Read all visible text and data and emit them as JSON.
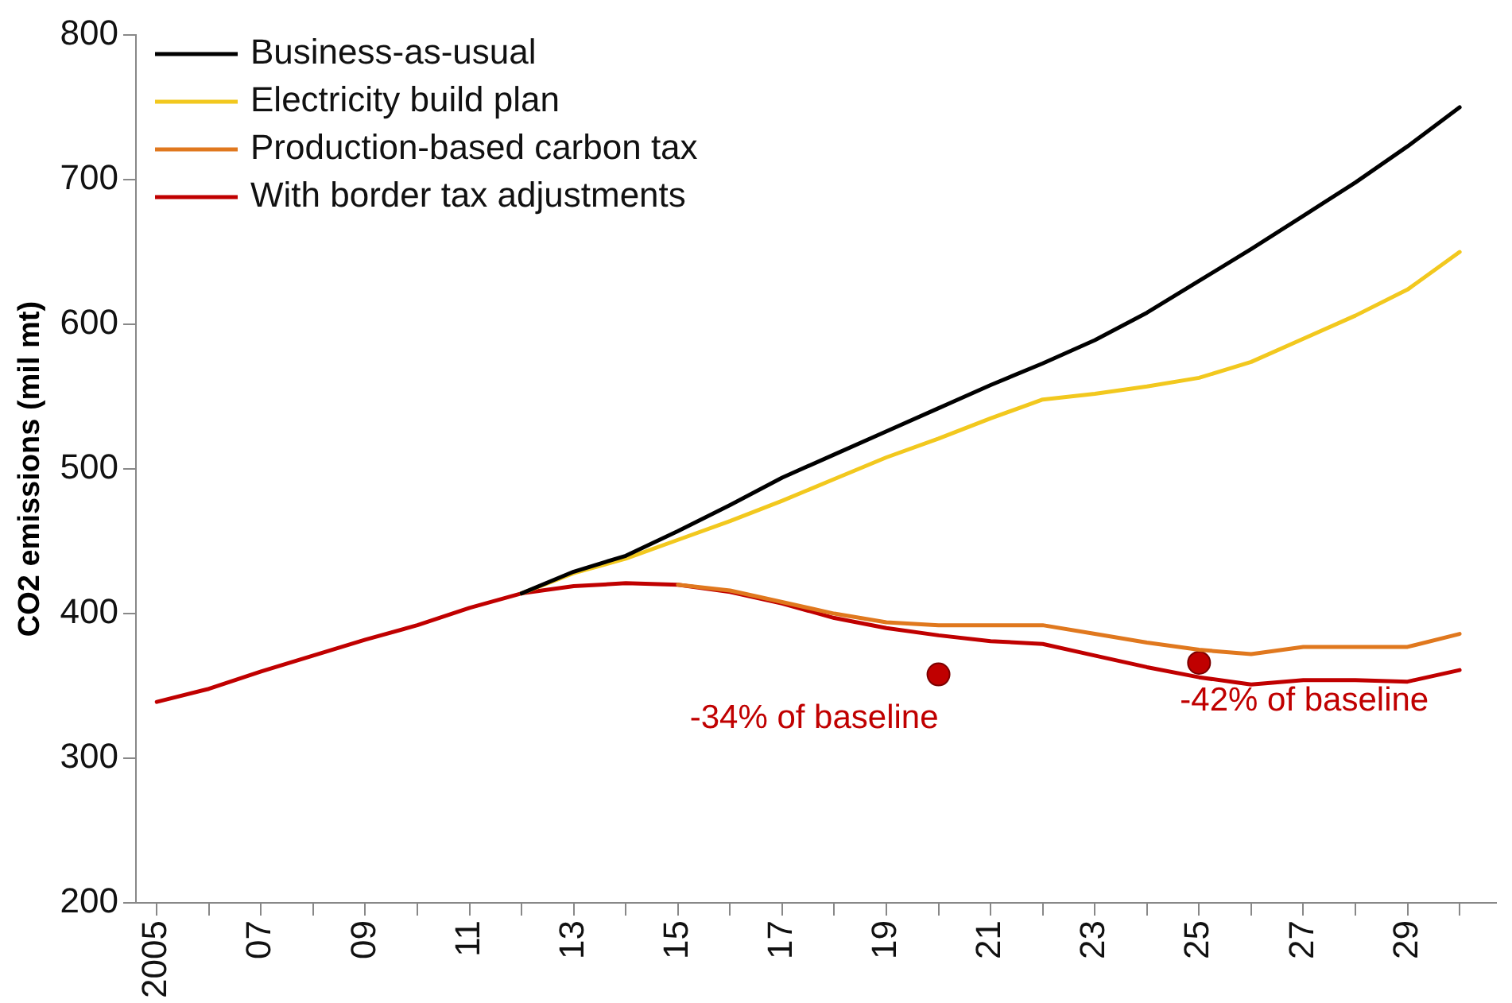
{
  "chart_data": {
    "type": "line",
    "ylabel": "CO2 emissions (mil mt)",
    "x": [
      2005,
      2006,
      2007,
      2008,
      2009,
      2010,
      2011,
      2012,
      2013,
      2014,
      2015,
      2016,
      2017,
      2018,
      2019,
      2020,
      2021,
      2022,
      2023,
      2024,
      2025,
      2026,
      2027,
      2028,
      2029,
      2030
    ],
    "series": [
      {
        "name": "Business-as-usual",
        "color": "#000000",
        "values": [
          null,
          null,
          null,
          null,
          null,
          null,
          null,
          414,
          429,
          440,
          457,
          475,
          494,
          510,
          526,
          542,
          558,
          573,
          589,
          608,
          630,
          652,
          675,
          698,
          723,
          750
        ]
      },
      {
        "name": "Electricity build plan",
        "color": "#f2c81e",
        "values": [
          null,
          null,
          null,
          null,
          null,
          null,
          null,
          414,
          428,
          438,
          451,
          464,
          478,
          493,
          508,
          521,
          535,
          548,
          552,
          557,
          563,
          574,
          590,
          606,
          624,
          650
        ]
      },
      {
        "name": "Production-based carbon tax",
        "color": "#e0781e",
        "values": [
          null,
          null,
          null,
          null,
          null,
          null,
          null,
          null,
          null,
          null,
          420,
          416,
          408,
          400,
          394,
          392,
          392,
          392,
          386,
          380,
          375,
          372,
          377,
          377,
          377,
          386
        ]
      },
      {
        "name": "With border tax adjustments",
        "color": "#c00000",
        "values": [
          339,
          348,
          360,
          371,
          382,
          392,
          404,
          414,
          419,
          421,
          420,
          415,
          407,
          397,
          390,
          385,
          381,
          379,
          371,
          363,
          356,
          351,
          354,
          354,
          353,
          361
        ]
      },
      {
        "type": "scatter",
        "color": "#c00000",
        "marker": "circle",
        "x": [
          2020,
          2025
        ],
        "values": [
          358,
          366
        ]
      }
    ],
    "annotations": [
      {
        "text": "-34% of baseline",
        "x": 2020,
        "y": 358
      },
      {
        "text": "-42% of baseline",
        "x": 2025,
        "y": 366
      }
    ],
    "xlim": [
      2004.6,
      2030.7
    ],
    "xticks": [
      {
        "value": 2005,
        "label": "2005"
      },
      {
        "value": 2006,
        "label": null
      },
      {
        "value": 2007,
        "label": "07"
      },
      {
        "value": 2008,
        "label": null
      },
      {
        "value": 2009,
        "label": "09"
      },
      {
        "value": 2010,
        "label": null
      },
      {
        "value": 2011,
        "label": "11"
      },
      {
        "value": 2012,
        "label": null
      },
      {
        "value": 2013,
        "label": "13"
      },
      {
        "value": 2014,
        "label": null
      },
      {
        "value": 2015,
        "label": "15"
      },
      {
        "value": 2016,
        "label": null
      },
      {
        "value": 2017,
        "label": "17"
      },
      {
        "value": 2018,
        "label": null
      },
      {
        "value": 2019,
        "label": "19"
      },
      {
        "value": 2020,
        "label": null
      },
      {
        "value": 2021,
        "label": "21"
      },
      {
        "value": 2022,
        "label": null
      },
      {
        "value": 2023,
        "label": "23"
      },
      {
        "value": 2024,
        "label": null
      },
      {
        "value": 2025,
        "label": "25"
      },
      {
        "value": 2026,
        "label": null
      },
      {
        "value": 2027,
        "label": "27"
      },
      {
        "value": 2028,
        "label": null
      },
      {
        "value": 2029,
        "label": "29"
      },
      {
        "value": 2030,
        "label": null
      }
    ],
    "ylim": [
      200,
      800
    ],
    "yticks": [
      200,
      300,
      400,
      500,
      600,
      700,
      800
    ],
    "grid": false,
    "legend": "top left",
    "marker": "none",
    "line_style": "solid"
  }
}
